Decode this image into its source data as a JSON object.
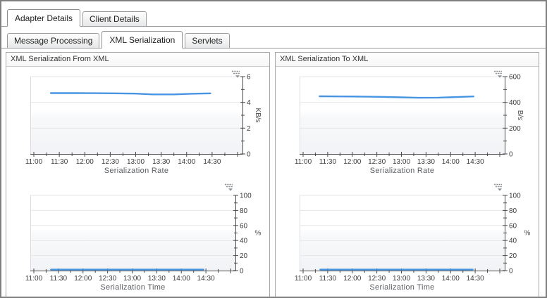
{
  "tabs": {
    "primary": [
      {
        "label": "Adapter Details",
        "active": true
      },
      {
        "label": "Client Details",
        "active": false
      }
    ],
    "secondary": [
      {
        "label": "Message Processing",
        "active": false
      },
      {
        "label": "XML Serialization",
        "active": true
      },
      {
        "label": "Servlets",
        "active": false
      }
    ]
  },
  "colors": {
    "accent_line": "#3d8ee0",
    "axis": "#4a4a4a",
    "grid": "#e4e6e9",
    "band_light": "#f8f9fb",
    "band_dark": "#f1f3f6",
    "tick_text": "#3b3b3b",
    "title_text": "#5a5e63",
    "icon_gray": "#8b9095"
  },
  "icons": {
    "chart_options": "chart-options-icon"
  },
  "panels": [
    {
      "title": "XML Serialization From XML",
      "charts": [
        {
          "type": "line",
          "title": "Serialization Rate",
          "unit": "KB/s",
          "y_axis": {
            "min": 0,
            "max": 6,
            "major_step": 2,
            "minor_step": 1,
            "labels": [
              "0",
              "2",
              "4",
              "6"
            ]
          },
          "x_axis": {
            "start": "11:00",
            "end": "15:00",
            "major_step_min": 30,
            "minor_step_min": 15,
            "labels": [
              "11:00",
              "11:30",
              "12:00",
              "12:30",
              "13:00",
              "13:30",
              "14:00",
              "14:30"
            ]
          },
          "series": [
            {
              "name": "Serialization Rate",
              "color": "#3d8ee0",
              "points": [
                [
                  "11:20",
                  4.72
                ],
                [
                  "11:45",
                  4.72
                ],
                [
                  "12:10",
                  4.71
                ],
                [
                  "12:35",
                  4.7
                ],
                [
                  "13:00",
                  4.68
                ],
                [
                  "13:20",
                  4.62
                ],
                [
                  "13:45",
                  4.62
                ],
                [
                  "14:05",
                  4.67
                ],
                [
                  "14:28",
                  4.7
                ]
              ]
            }
          ]
        },
        {
          "type": "line",
          "title": "Serialization Time",
          "unit": "%",
          "y_axis": {
            "min": 0,
            "max": 100,
            "major_step": 20,
            "minor_step": 10,
            "labels": [
              "0",
              "20",
              "40",
              "60",
              "80",
              "100"
            ]
          },
          "x_axis": {
            "start": "11:00",
            "end": "15:00",
            "major_step_min": 30,
            "minor_step_min": 15,
            "labels": [
              "11:00",
              "11:30",
              "12:00",
              "12:30",
              "13:00",
              "13:30",
              "14:00",
              "14:30"
            ]
          },
          "series": [
            {
              "name": "Serialization Time",
              "color": "#3d8ee0",
              "points": [
                [
                  "11:21",
                  1
                ],
                [
                  "12:00",
                  1
                ],
                [
                  "12:30",
                  1
                ],
                [
                  "13:00",
                  1
                ],
                [
                  "13:30",
                  1
                ],
                [
                  "14:00",
                  1
                ],
                [
                  "14:27",
                  1
                ]
              ]
            }
          ]
        }
      ]
    },
    {
      "title": "XML Serialization To XML",
      "charts": [
        {
          "type": "line",
          "title": "Serialization Rate",
          "unit": "B/s",
          "y_axis": {
            "min": 0,
            "max": 600,
            "major_step": 200,
            "minor_step": 100,
            "labels": [
              "0",
              "200",
              "400",
              "600"
            ]
          },
          "x_axis": {
            "start": "11:00",
            "end": "15:00",
            "major_step_min": 30,
            "minor_step_min": 15,
            "labels": [
              "11:00",
              "11:30",
              "12:00",
              "12:30",
              "13:00",
              "13:30",
              "14:00",
              "14:30"
            ]
          },
          "series": [
            {
              "name": "Serialization Rate",
              "color": "#3d8ee0",
              "points": [
                [
                  "11:20",
                  447
                ],
                [
                  "11:45",
                  446
                ],
                [
                  "12:10",
                  445
                ],
                [
                  "12:35",
                  443
                ],
                [
                  "13:00",
                  439
                ],
                [
                  "13:20",
                  436
                ],
                [
                  "13:45",
                  437
                ],
                [
                  "14:05",
                  441
                ],
                [
                  "14:28",
                  446
                ]
              ]
            }
          ]
        },
        {
          "type": "line",
          "title": "Serialization Time",
          "unit": "%",
          "y_axis": {
            "min": 0,
            "max": 100,
            "major_step": 20,
            "minor_step": 10,
            "labels": [
              "0",
              "20",
              "40",
              "60",
              "80",
              "100"
            ]
          },
          "x_axis": {
            "start": "11:00",
            "end": "15:00",
            "major_step_min": 30,
            "minor_step_min": 15,
            "labels": [
              "11:00",
              "11:30",
              "12:00",
              "12:30",
              "13:00",
              "13:30",
              "14:00",
              "14:30"
            ]
          },
          "series": [
            {
              "name": "Serialization Time",
              "color": "#3d8ee0",
              "points": [
                [
                  "11:21",
                  1
                ],
                [
                  "12:00",
                  1
                ],
                [
                  "12:30",
                  1
                ],
                [
                  "13:00",
                  1
                ],
                [
                  "13:30",
                  1
                ],
                [
                  "14:00",
                  1
                ],
                [
                  "14:27",
                  1
                ]
              ]
            }
          ]
        }
      ]
    }
  ]
}
